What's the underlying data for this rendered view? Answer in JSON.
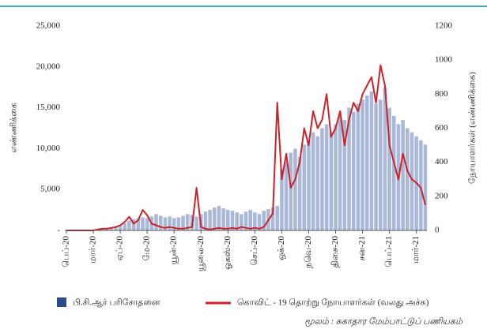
{
  "chart_data": {
    "type": "bar-line",
    "y_label": "எண்ணிக்கை",
    "y2_label": "நோயாளர்கள் (எண்ணிக்கை)",
    "source": "மூலம் :  சுகாதார மேம்பாட்டுப் பணியகம்",
    "categories": [
      "பெப்-20",
      null,
      null,
      null,
      null,
      null,
      "மார்-20",
      null,
      null,
      null,
      null,
      null,
      "ஏப்-20",
      null,
      null,
      null,
      null,
      null,
      "மே-20",
      null,
      null,
      null,
      null,
      null,
      "யூன்-20",
      null,
      null,
      null,
      null,
      null,
      "யூலை-20",
      null,
      null,
      null,
      null,
      null,
      "ஓகஸ்-20",
      null,
      null,
      null,
      null,
      null,
      "செப்-20",
      null,
      null,
      null,
      null,
      null,
      "ஒக்-20",
      null,
      null,
      null,
      null,
      null,
      "நவெ-20",
      null,
      null,
      null,
      null,
      null,
      "திசை-20",
      null,
      null,
      null,
      null,
      null,
      "சன-21",
      null,
      null,
      null,
      null,
      null,
      "பெப்-21",
      null,
      null,
      null,
      null,
      null,
      "மார்-21",
      null,
      null
    ],
    "series": [
      {
        "name": "பி.சி.ஆர் பரிசோதனை",
        "color": "#a9b7d8",
        "legend_color": "#2e4a8f",
        "kind": "bar",
        "values": [
          0,
          0,
          0,
          0,
          0,
          50,
          100,
          150,
          200,
          300,
          400,
          500,
          600,
          900,
          1200,
          1400,
          1500,
          1600,
          1500,
          1700,
          2000,
          1800,
          1600,
          1700,
          1500,
          1600,
          1800,
          2000,
          1900,
          1700,
          2000,
          2300,
          2500,
          2800,
          3000,
          2700,
          2500,
          2400,
          2200,
          2000,
          2300,
          2500,
          2200,
          2000,
          2400,
          2600,
          2800,
          3000,
          7500,
          8500,
          9500,
          10000,
          9000,
          10500,
          11000,
          12000,
          11500,
          12500,
          13000,
          12000,
          13000,
          14000,
          13500,
          15000,
          14500,
          15500,
          16000,
          16500,
          17000,
          15500,
          16000,
          17500,
          15000,
          14000,
          13000,
          13500,
          12500,
          12000,
          11500,
          11000,
          10500
        ]
      },
      {
        "name": "கொவிட் - 19 தொற்று நோயாளர்கள் (வலது அச்சு)",
        "color": "#cc2229",
        "kind": "line",
        "axis": "y2",
        "values": [
          0,
          0,
          0,
          0,
          0,
          0,
          0,
          5,
          10,
          10,
          15,
          20,
          30,
          50,
          80,
          40,
          60,
          120,
          90,
          40,
          30,
          20,
          15,
          20,
          15,
          10,
          10,
          15,
          20,
          250,
          20,
          10,
          5,
          10,
          15,
          10,
          10,
          15,
          10,
          20,
          15,
          10,
          15,
          10,
          20,
          60,
          100,
          750,
          300,
          450,
          250,
          300,
          400,
          600,
          500,
          700,
          600,
          650,
          800,
          550,
          600,
          700,
          500,
          650,
          750,
          700,
          800,
          850,
          900,
          750,
          970,
          850,
          500,
          400,
          300,
          450,
          350,
          300,
          280,
          250,
          150
        ]
      }
    ],
    "ylim": [
      0,
      25000
    ],
    "yticks": [
      {
        "value": 0,
        "label": "-"
      },
      {
        "value": 5000,
        "label": "5,000"
      },
      {
        "value": 10000,
        "label": "10,000"
      },
      {
        "value": 15000,
        "label": "15,000"
      },
      {
        "value": 20000,
        "label": "20,000"
      },
      {
        "value": 25000,
        "label": "25,000"
      }
    ],
    "y2lim": [
      0,
      1200
    ],
    "y2ticks": [
      0,
      200,
      400,
      600,
      800,
      1000,
      1200
    ]
  }
}
